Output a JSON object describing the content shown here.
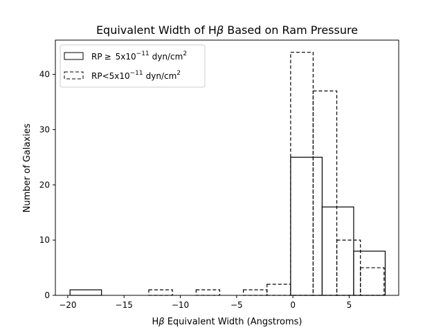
{
  "chart_data": {
    "type": "histogram",
    "title_parts": [
      "Equivalent Width of H",
      "β",
      " Based on Ram Pressure"
    ],
    "xlabel_parts": [
      "H",
      "β",
      " Equivalent Width (Angstroms)"
    ],
    "ylabel": "Number of Galaxies",
    "xlim": [
      -21.1,
      9.4
    ],
    "ylim": [
      0,
      46.2
    ],
    "xticks": [
      -20,
      -15,
      -10,
      -5,
      0,
      5
    ],
    "xtick_labels": [
      "−20",
      "−15",
      "−10",
      "−5",
      "0",
      "5"
    ],
    "yticks": [
      0,
      10,
      20,
      30,
      40
    ],
    "yticks_labels": [
      "0",
      "10",
      "20",
      "30",
      "40"
    ],
    "legend_position": "upper-left",
    "series": [
      {
        "name_parts": [
          "RP",
          "≥",
          "5x10",
          "−11",
          "dyn/cm",
          "2"
        ],
        "linestyle": "solid",
        "color": "#000000",
        "bin_edges": [
          -19.8,
          -17.0,
          -14.2,
          -11.4,
          -8.6,
          -5.8,
          -3.0,
          -0.2,
          2.6,
          5.4,
          8.2
        ],
        "counts": [
          1,
          0,
          0,
          0,
          0,
          0,
          0,
          25,
          16,
          8
        ]
      },
      {
        "name_parts": [
          "RP<5x10",
          "−11",
          "dyn/cm",
          "2"
        ],
        "linestyle": "dashed",
        "color": "#000000",
        "bin_edges": [
          -12.8,
          -10.7,
          -8.6,
          -6.5,
          -4.4,
          -2.3,
          -0.2,
          1.8,
          3.9,
          6.0,
          8.1
        ],
        "counts": [
          1,
          0,
          1,
          0,
          1,
          2,
          44,
          37,
          10,
          5
        ]
      }
    ]
  }
}
